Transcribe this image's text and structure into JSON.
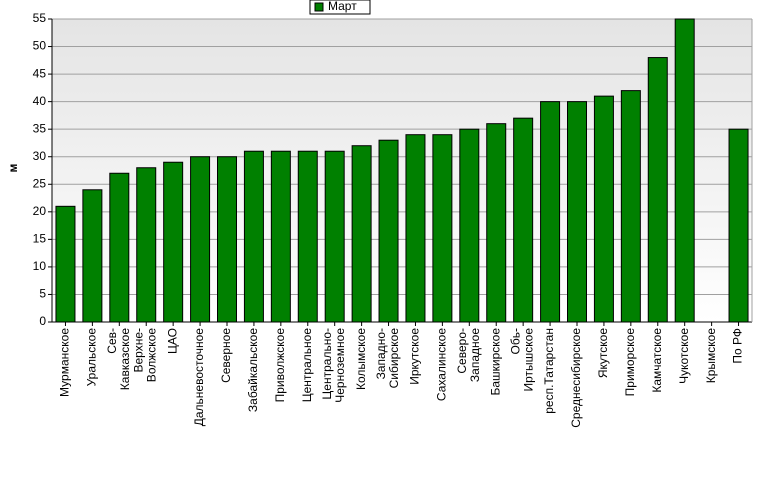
{
  "chart_data": {
    "type": "bar",
    "categories": [
      "Мурманское",
      "Уральское",
      "Сев-\nКавказское",
      "Верхне-\nВолжское",
      "ЦАО",
      "Дальневосточное",
      "Северное",
      "Забайкальское",
      "Приволжское",
      "Центральное",
      "Центрально-\nЧерноземное",
      "Колымское",
      "Западно-\nСибирское",
      "Иркутское",
      "Сахалинское",
      "Северо-\nЗападное",
      "Башкирское",
      "Обь-\nИртышское",
      "респ.Татарстан",
      "Среднесибирское",
      "Якутское",
      "Приморское",
      "Камчатское",
      "Чукотское",
      "Крымское",
      "По РФ"
    ],
    "series": [
      {
        "name": "Март",
        "color": "#008000",
        "values": [
          21,
          24,
          27,
          28,
          29,
          30,
          30,
          31,
          31,
          31,
          31,
          32,
          33,
          34,
          34,
          35,
          36,
          37,
          40,
          40,
          41,
          42,
          48,
          55,
          null,
          35
        ]
      }
    ],
    "y_label": "м",
    "ylim": [
      0,
      55
    ],
    "yticks": [
      0,
      5,
      10,
      15,
      20,
      25,
      30,
      35,
      40,
      45,
      50,
      55
    ],
    "grid": true
  }
}
